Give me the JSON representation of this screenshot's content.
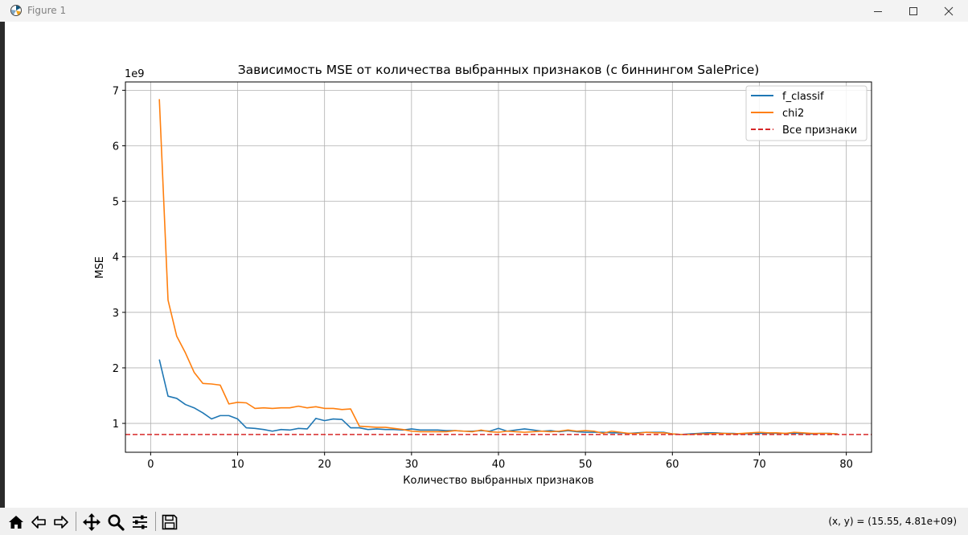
{
  "window": {
    "title": "Figure 1",
    "icon": "matplotlib-logo-icon",
    "controls": [
      "minimize-icon",
      "maximize-icon",
      "close-icon"
    ]
  },
  "toolbar": {
    "tools": [
      "home-icon",
      "back-arrow-icon",
      "forward-arrow-icon",
      "pan-move-icon",
      "zoom-magnifier-icon",
      "configure-subplots-icon",
      "save-disk-icon"
    ],
    "coords": "(x, y) = (15.55, 4.81e+09)"
  },
  "chart_data": {
    "type": "line",
    "title": "Зависимость MSE от количества выбранных признаков (с биннингом SalePrice)",
    "xlabel": "Количество выбранных признаков",
    "ylabel": "MSE",
    "y_offset_label": "1e9",
    "y_scale_note": "values in units of 1e9",
    "xlim": [
      -2.9,
      82.9
    ],
    "ylim": [
      0.48,
      7.15
    ],
    "x_ticks": [
      0,
      10,
      20,
      30,
      40,
      50,
      60,
      70,
      80
    ],
    "y_ticks": [
      1,
      2,
      3,
      4,
      5,
      6,
      7
    ],
    "grid": true,
    "legend_position": "top-right",
    "colors": {
      "f_classif": "#1f77b4",
      "chi2": "#ff7f0e",
      "baseline": "#d62728",
      "axes": "#000000",
      "grid": "#b0b0b0"
    },
    "x": [
      1,
      2,
      3,
      4,
      5,
      6,
      7,
      8,
      9,
      10,
      11,
      12,
      13,
      14,
      15,
      16,
      17,
      18,
      19,
      20,
      21,
      22,
      23,
      24,
      25,
      26,
      27,
      28,
      29,
      30,
      31,
      32,
      33,
      34,
      35,
      36,
      37,
      38,
      39,
      40,
      41,
      42,
      43,
      44,
      45,
      46,
      47,
      48,
      49,
      50,
      51,
      52,
      53,
      54,
      55,
      56,
      57,
      58,
      59,
      60,
      61,
      62,
      63,
      64,
      65,
      66,
      67,
      68,
      69,
      70,
      71,
      72,
      73,
      74,
      75,
      76,
      77,
      78,
      79
    ],
    "series": [
      {
        "name": "f_classif",
        "style": "solid",
        "values": [
          2.15,
          1.49,
          1.45,
          1.34,
          1.28,
          1.19,
          1.08,
          1.14,
          1.14,
          1.08,
          0.92,
          0.91,
          0.89,
          0.86,
          0.89,
          0.88,
          0.91,
          0.9,
          1.09,
          1.05,
          1.08,
          1.07,
          0.92,
          0.92,
          0.89,
          0.9,
          0.89,
          0.89,
          0.88,
          0.9,
          0.88,
          0.88,
          0.88,
          0.87,
          0.87,
          0.86,
          0.86,
          0.87,
          0.86,
          0.91,
          0.86,
          0.88,
          0.9,
          0.88,
          0.86,
          0.87,
          0.85,
          0.87,
          0.85,
          0.84,
          0.84,
          0.84,
          0.83,
          0.83,
          0.82,
          0.83,
          0.84,
          0.84,
          0.84,
          0.81,
          0.8,
          0.81,
          0.82,
          0.83,
          0.83,
          0.82,
          0.82,
          0.81,
          0.82,
          0.82,
          0.82,
          0.82,
          0.82,
          0.82,
          0.82,
          0.81,
          0.82,
          0.82,
          0.81
        ]
      },
      {
        "name": "chi2",
        "style": "solid",
        "values": [
          6.84,
          3.22,
          2.57,
          2.27,
          1.92,
          1.72,
          1.71,
          1.69,
          1.35,
          1.38,
          1.37,
          1.27,
          1.28,
          1.27,
          1.28,
          1.28,
          1.31,
          1.28,
          1.3,
          1.27,
          1.27,
          1.25,
          1.26,
          0.95,
          0.94,
          0.93,
          0.93,
          0.91,
          0.89,
          0.86,
          0.85,
          0.85,
          0.85,
          0.85,
          0.87,
          0.86,
          0.85,
          0.88,
          0.85,
          0.84,
          0.86,
          0.85,
          0.84,
          0.85,
          0.86,
          0.85,
          0.86,
          0.88,
          0.86,
          0.87,
          0.86,
          0.82,
          0.86,
          0.84,
          0.82,
          0.82,
          0.84,
          0.83,
          0.83,
          0.81,
          0.8,
          0.8,
          0.81,
          0.81,
          0.82,
          0.82,
          0.81,
          0.82,
          0.83,
          0.84,
          0.83,
          0.83,
          0.82,
          0.84,
          0.83,
          0.82,
          0.82,
          0.82,
          0.81
        ]
      },
      {
        "name": "Все признаки",
        "style": "dashed",
        "value": 0.8
      }
    ]
  }
}
